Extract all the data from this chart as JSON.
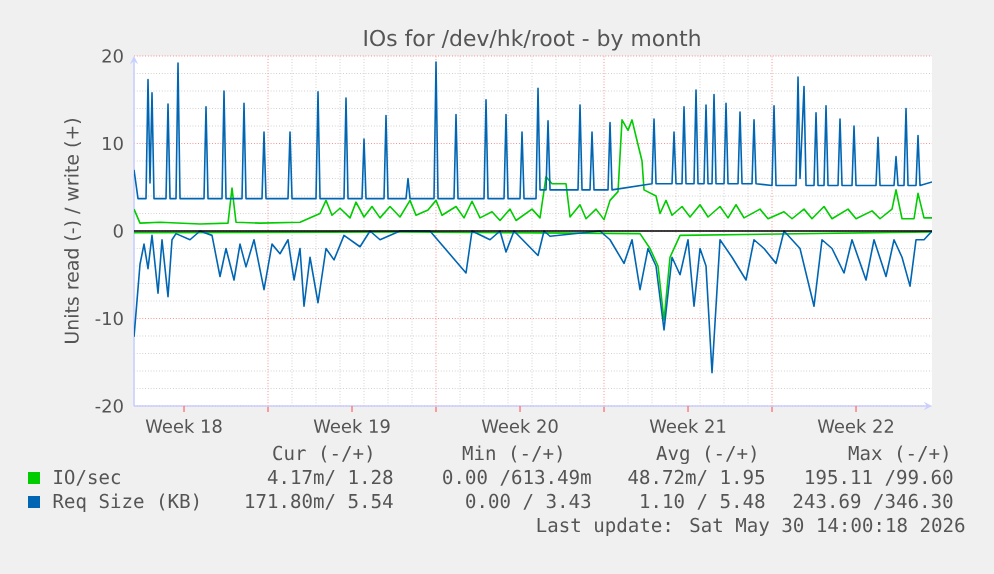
{
  "chart_data": {
    "type": "line",
    "title": "IOs for /dev/hk/root - by month",
    "ylabel": "Units read (-) / write (+)",
    "xlim": [
      "2026-04-27T10:00",
      "2026-05-30T16:00"
    ],
    "ylim": [
      -20,
      20
    ],
    "yticks": [
      -20,
      -10,
      0,
      10,
      20
    ],
    "xticks": [
      {
        "value": "2026-04-29T12:00",
        "label": "Week 18"
      },
      {
        "value": "2026-05-03",
        "label": null
      },
      {
        "value": "2026-05-06T12:00",
        "label": "Week 19"
      },
      {
        "value": "2026-05-10",
        "label": null
      },
      {
        "value": "2026-05-13T12:00",
        "label": "Week 20"
      },
      {
        "value": "2026-05-17",
        "label": null
      },
      {
        "value": "2026-05-20T12:00",
        "label": "Week 21"
      },
      {
        "value": "2026-05-24",
        "label": null
      },
      {
        "value": "2026-05-27T12:00",
        "label": "Week 22"
      }
    ],
    "grid": true,
    "legend": "bottom",
    "ref_lines": [
      {
        "axis": "y",
        "value": 0,
        "color": "#000000"
      }
    ],
    "series": [
      {
        "name": "IO/sec",
        "color": "#00cc00",
        "x": [
          "2026-04-27T10:00",
          "2026-04-27T16:00",
          "2026-04-28T12:00",
          "2026-04-30T04:00",
          "2026-05-01T08:00",
          "2026-05-01T12:00",
          "2026-05-01T16:00",
          "2026-05-02T16:00",
          "2026-05-04T08:00",
          "2026-05-05T04:00",
          "2026-05-05T10:00",
          "2026-05-05T16:00",
          "2026-05-06T00:00",
          "2026-05-06T10:00",
          "2026-05-06T16:00",
          "2026-05-07T00:00",
          "2026-05-07T08:00",
          "2026-05-07T16:00",
          "2026-05-08T02:00",
          "2026-05-08T12:00",
          "2026-05-08T22:00",
          "2026-05-09T04:00",
          "2026-05-09T16:00",
          "2026-05-10T00:00",
          "2026-05-10T06:00",
          "2026-05-10T20:00",
          "2026-05-11T04:00",
          "2026-05-11T12:00",
          "2026-05-11T20:00",
          "2026-05-12T08:00",
          "2026-05-12T16:00",
          "2026-05-13T02:00",
          "2026-05-13T08:00",
          "2026-05-14T00:00",
          "2026-05-14T08:00",
          "2026-05-14T14:00",
          "2026-05-14T20:00",
          "2026-05-15T10:00",
          "2026-05-15T14:00",
          "2026-05-16T00:00",
          "2026-05-16T06:00",
          "2026-05-16T16:00",
          "2026-05-17T00:00",
          "2026-05-17T06:00",
          "2026-05-17T14:00",
          "2026-05-17T18:00",
          "2026-05-18T00:00",
          "2026-05-18T04:00",
          "2026-05-18T08:00",
          "2026-05-18T14:00",
          "2026-05-18T16:00",
          "2026-05-19T04:00",
          "2026-05-19T08:00",
          "2026-05-19T14:00",
          "2026-05-19T20:00",
          "2026-05-20T06:00",
          "2026-05-20T14:00",
          "2026-05-21T00:00",
          "2026-05-21T08:00",
          "2026-05-21T20:00",
          "2026-05-22T04:00",
          "2026-05-22T12:00",
          "2026-05-22T20:00",
          "2026-05-23T12:00",
          "2026-05-23T20:00",
          "2026-05-24T12:00",
          "2026-05-24T20:00",
          "2026-05-25T08:00",
          "2026-05-25T16:00",
          "2026-05-26T04:00",
          "2026-05-26T12:00",
          "2026-05-27T04:00",
          "2026-05-27T12:00",
          "2026-05-28T04:00",
          "2026-05-28T12:00",
          "2026-05-29T00:00",
          "2026-05-29T04:00",
          "2026-05-29T10:00",
          "2026-05-29T22:00",
          "2026-05-30T02:00",
          "2026-05-30T08:00",
          "2026-05-30T16:00"
        ],
        "values": [
          2.5,
          0.9,
          1.0,
          0.8,
          0.9,
          4.9,
          1.0,
          0.9,
          1.0,
          2.0,
          3.5,
          1.8,
          2.6,
          1.5,
          3.3,
          1.6,
          2.8,
          1.5,
          2.8,
          1.6,
          3.5,
          1.8,
          2.4,
          3.5,
          1.8,
          2.8,
          1.5,
          3.4,
          1.5,
          2.2,
          1.2,
          2.5,
          1.2,
          2.5,
          1.5,
          6.2,
          5.4,
          5.4,
          1.6,
          3.0,
          1.4,
          2.5,
          1.3,
          3.5,
          4.5,
          12.7,
          11.5,
          12.7,
          10.8,
          8.0,
          4.7,
          4.0,
          2.0,
          3.5,
          1.8,
          2.8,
          1.6,
          3.0,
          1.6,
          2.8,
          1.5,
          3.0,
          1.5,
          2.5,
          1.4,
          2.2,
          1.4,
          2.5,
          1.4,
          2.8,
          1.4,
          2.5,
          1.4,
          2.3,
          1.4,
          2.5,
          4.7,
          1.4,
          1.4,
          4.3,
          1.5,
          1.5
        ]
      },
      {
        "name": "Req Size (KB)",
        "color": "#0066b3",
        "x": [
          "2026-04-27T10:00",
          "2026-04-27T14:00",
          "2026-04-27T22:00",
          "2026-04-28T00:00",
          "2026-04-28T02:00",
          "2026-04-28T04:00",
          "2026-04-28T06:00",
          "2026-04-28T18:00",
          "2026-04-28T20:00",
          "2026-04-28T22:00",
          "2026-04-29T04:00",
          "2026-04-29T06:00",
          "2026-04-29T08:00",
          "2026-04-30T08:00",
          "2026-04-30T10:00",
          "2026-04-30T12:00",
          "2026-05-01T02:00",
          "2026-05-01T04:00",
          "2026-05-01T06:00",
          "2026-05-01T22:00",
          "2026-05-02T00:00",
          "2026-05-02T02:00",
          "2026-05-02T18:00",
          "2026-05-02T20:00",
          "2026-05-02T22:00",
          "2026-05-03T20:00",
          "2026-05-03T22:00",
          "2026-05-04T00:00",
          "2026-05-05T00:00",
          "2026-05-05T02:00",
          "2026-05-05T04:00",
          "2026-05-06T04:00",
          "2026-05-06T06:00",
          "2026-05-06T08:00",
          "2026-05-06T22:00",
          "2026-05-07T00:00",
          "2026-05-07T02:00",
          "2026-05-07T20:00",
          "2026-05-07T22:00",
          "2026-05-08T00:00",
          "2026-05-08T18:00",
          "2026-05-08T20:00",
          "2026-05-08T22:00",
          "2026-05-09T22:00",
          "2026-05-10T00:00",
          "2026-05-10T02:00",
          "2026-05-10T18:00",
          "2026-05-10T20:00",
          "2026-05-10T22:00",
          "2026-05-12T00:00",
          "2026-05-12T02:00",
          "2026-05-12T04:00",
          "2026-05-12T20:00",
          "2026-05-12T22:00",
          "2026-05-13T00:00",
          "2026-05-13T12:00",
          "2026-05-13T14:00",
          "2026-05-13T16:00",
          "2026-05-14T04:00",
          "2026-05-14T06:00",
          "2026-05-14T08:00",
          "2026-05-14T14:00",
          "2026-05-14T16:00",
          "2026-05-14T18:00",
          "2026-05-15T22:00",
          "2026-05-16T00:00",
          "2026-05-16T02:00",
          "2026-05-16T10:00",
          "2026-05-16T12:00",
          "2026-05-16T14:00",
          "2026-05-17T04:00",
          "2026-05-17T06:00",
          "2026-05-17T08:00",
          "2026-05-19T00:00",
          "2026-05-19T02:00",
          "2026-05-19T04:00",
          "2026-05-19T20:00",
          "2026-05-19T22:00",
          "2026-05-20T00:00",
          "2026-05-20T06:00",
          "2026-05-20T08:00",
          "2026-05-20T10:00",
          "2026-05-20T18:00",
          "2026-05-20T20:00",
          "2026-05-20T22:00",
          "2026-05-21T04:00",
          "2026-05-21T06:00",
          "2026-05-21T08:00",
          "2026-05-21T12:00",
          "2026-05-21T14:00",
          "2026-05-21T16:00",
          "2026-05-22T00:00",
          "2026-05-22T02:00",
          "2026-05-22T04:00",
          "2026-05-22T14:00",
          "2026-05-22T16:00",
          "2026-05-22T18:00",
          "2026-05-23T04:00",
          "2026-05-23T06:00",
          "2026-05-23T08:00",
          "2026-05-24T00:00",
          "2026-05-24T02:00",
          "2026-05-24T04:00",
          "2026-05-25T00:00",
          "2026-05-25T02:00",
          "2026-05-25T04:00",
          "2026-05-25T08:00",
          "2026-05-25T10:00",
          "2026-05-25T18:00",
          "2026-05-25T20:00",
          "2026-05-25T22:00",
          "2026-05-26T04:00",
          "2026-05-26T06:00",
          "2026-05-26T08:00",
          "2026-05-26T18:00",
          "2026-05-26T20:00",
          "2026-05-26T22:00",
          "2026-05-27T08:00",
          "2026-05-27T10:00",
          "2026-05-27T12:00",
          "2026-05-28T08:00",
          "2026-05-28T10:00",
          "2026-05-28T12:00",
          "2026-05-29T02:00",
          "2026-05-29T04:00",
          "2026-05-29T06:00",
          "2026-05-29T12:00",
          "2026-05-29T14:00",
          "2026-05-29T16:00",
          "2026-05-30T00:00",
          "2026-05-30T02:00",
          "2026-05-30T04:00",
          "2026-05-30T16:00"
        ],
        "values": [
          7.0,
          3.7,
          3.7,
          17.3,
          5.5,
          15.8,
          3.7,
          3.7,
          14.5,
          3.7,
          3.7,
          19.2,
          3.7,
          3.7,
          14.2,
          3.7,
          3.7,
          16.0,
          3.7,
          3.7,
          14.6,
          3.7,
          3.7,
          11.3,
          3.7,
          3.7,
          11.3,
          3.7,
          3.7,
          15.9,
          3.7,
          3.7,
          15.2,
          3.7,
          3.7,
          10.5,
          3.7,
          3.7,
          13.2,
          3.7,
          3.7,
          6.0,
          3.7,
          3.7,
          19.3,
          3.7,
          3.7,
          13.3,
          3.7,
          3.7,
          15.0,
          3.7,
          3.7,
          13.3,
          3.7,
          3.7,
          11.3,
          3.7,
          3.7,
          16.3,
          4.7,
          4.7,
          12.6,
          4.7,
          4.7,
          14.4,
          4.7,
          4.7,
          11.3,
          4.7,
          4.7,
          12.4,
          4.7,
          5.4,
          12.8,
          5.4,
          5.4,
          11.3,
          5.4,
          5.4,
          14.2,
          5.4,
          5.4,
          16.1,
          5.4,
          5.4,
          14.4,
          5.4,
          5.4,
          15.6,
          5.4,
          5.4,
          14.6,
          5.4,
          5.4,
          13.6,
          5.4,
          5.4,
          12.7,
          5.4,
          5.2,
          14.3,
          5.2,
          5.2,
          17.6,
          6.0,
          16.5,
          5.2,
          5.2,
          13.5,
          5.2,
          5.2,
          14.3,
          5.2,
          5.2,
          12.8,
          5.2,
          5.2,
          12.0,
          5.2,
          5.2,
          10.7,
          5.2,
          5.2,
          8.5,
          5.2,
          5.2,
          14.0,
          5.2,
          5.2,
          10.9,
          5.2,
          5.6
        ]
      },
      {
        "color": "#00cc00",
        "x": [
          "2026-04-27T10:00",
          "2026-05-08T12:00",
          "2026-05-18T12:00",
          "2026-05-18T22:00",
          "2026-05-19T06:00",
          "2026-05-19T12:00",
          "2026-05-19T18:00",
          "2026-05-20T04:00",
          "2026-05-30T16:00"
        ],
        "values": [
          -0.2,
          -0.1,
          -0.3,
          -2,
          -4,
          -10.2,
          -3,
          -0.5,
          -0.1
        ]
      },
      {
        "color": "#0066b3",
        "x": [
          "2026-04-27T10:00",
          "2026-04-27T16:00",
          "2026-04-27T20:00",
          "2026-04-28T00:00",
          "2026-04-28T04:00",
          "2026-04-28T10:00",
          "2026-04-28T14:00",
          "2026-04-28T20:00",
          "2026-04-29T00:00",
          "2026-04-29T04:00",
          "2026-04-29T18:00",
          "2026-04-30T04:00",
          "2026-04-30T16:00",
          "2026-05-01T00:00",
          "2026-05-01T06:00",
          "2026-05-01T14:00",
          "2026-05-01T20:00",
          "2026-05-02T02:00",
          "2026-05-02T10:00",
          "2026-05-02T20:00",
          "2026-05-03T04:00",
          "2026-05-03T12:00",
          "2026-05-03T20:00",
          "2026-05-04T02:00",
          "2026-05-04T08:00",
          "2026-05-04T12:00",
          "2026-05-04T18:00",
          "2026-05-05T02:00",
          "2026-05-05T10:00",
          "2026-05-05T18:00",
          "2026-05-06T04:00",
          "2026-05-06T20:00",
          "2026-05-07T06:00",
          "2026-05-07T16:00",
          "2026-05-08T12:00",
          "2026-05-09T18:00",
          "2026-05-11T06:00",
          "2026-05-11T12:00",
          "2026-05-12T06:00",
          "2026-05-12T16:00",
          "2026-05-12T22:00",
          "2026-05-13T06:00",
          "2026-05-14T06:00",
          "2026-05-14T12:00",
          "2026-05-14T18:00",
          "2026-05-16T20:00",
          "2026-05-17T06:00",
          "2026-05-17T20:00",
          "2026-05-18T04:00",
          "2026-05-18T12:00",
          "2026-05-18T20:00",
          "2026-05-19T04:00",
          "2026-05-19T12:00",
          "2026-05-19T20:00",
          "2026-05-20T04:00",
          "2026-05-20T12:00",
          "2026-05-20T18:00",
          "2026-05-21T00:00",
          "2026-05-21T06:00",
          "2026-05-21T12:00",
          "2026-05-21T20:00",
          "2026-05-22T08:00",
          "2026-05-22T22:00",
          "2026-05-23T06:00",
          "2026-05-23T16:00",
          "2026-05-24T04:00",
          "2026-05-24T12:00",
          "2026-05-25T04:00",
          "2026-05-25T18:00",
          "2026-05-26T02:00",
          "2026-05-26T12:00",
          "2026-05-27T00:00",
          "2026-05-27T08:00",
          "2026-05-27T22:00",
          "2026-05-28T06:00",
          "2026-05-28T18:00",
          "2026-05-29T02:00",
          "2026-05-29T10:00",
          "2026-05-29T18:00",
          "2026-05-30T00:00",
          "2026-05-30T08:00",
          "2026-05-30T16:00"
        ],
        "values": [
          -12.1,
          -3.8,
          -1.5,
          -4.3,
          -0.5,
          -7.1,
          -1,
          -7.5,
          -1,
          -0.3,
          -1,
          0,
          -0.5,
          -5.2,
          -2,
          -5.6,
          -1.5,
          -4.1,
          -1,
          -6.7,
          -1.5,
          -2.6,
          -1,
          -5.6,
          -2,
          -8.6,
          -3,
          -8.2,
          -2,
          -3.3,
          -0.5,
          -1.8,
          0,
          -1,
          0,
          0,
          -4.8,
          0,
          -1,
          0,
          -2.4,
          0,
          -2.8,
          0,
          -0.6,
          0,
          -1,
          -3.7,
          -1,
          -6.7,
          -2,
          -4,
          -11.3,
          -3,
          -5,
          -1,
          -8.6,
          -2,
          -4,
          -16.2,
          -1,
          -3,
          -5.6,
          -1,
          -2,
          -3.7,
          0,
          -2,
          -8.6,
          -1,
          -2,
          -4.8,
          -1,
          -5.6,
          -1,
          -5.2,
          -1,
          -3,
          -6.3,
          -1,
          -1,
          0
        ]
      }
    ],
    "annotations": [
      "Cur (-/+)",
      "Min (-/+)",
      "Avg (-/+)",
      "Max (-/+)",
      "4.17m/ 1.28",
      "0.00 /613.49m",
      "48.72m/ 1.95",
      "195.11 /99.60",
      "171.80m/ 5.54",
      "0.00 / 3.43",
      "1.10 / 5.48",
      "243.69 /346.30",
      "Last update: Sat May 30 14:00:18 2026"
    ]
  }
}
